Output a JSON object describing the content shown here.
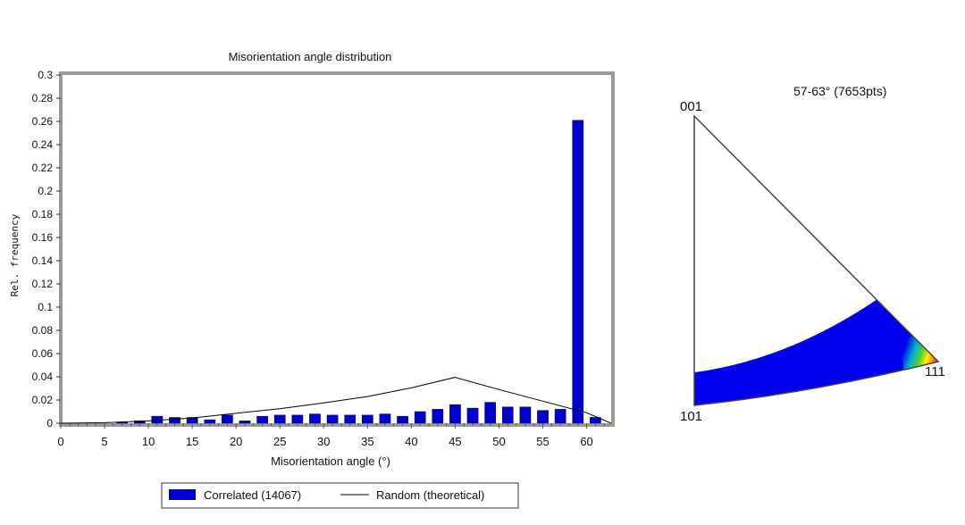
{
  "chart_data": [
    {
      "type": "bar",
      "title": "Misorientation angle distribution",
      "xlabel": "Misorientation angle (°)",
      "ylabel": "Rel. frequency",
      "xlim": [
        0,
        63
      ],
      "ylim": [
        0,
        0.3
      ],
      "x_ticks": [
        0,
        5,
        10,
        15,
        20,
        25,
        30,
        35,
        40,
        45,
        50,
        55,
        60
      ],
      "y_ticks": [
        "0",
        "0.02",
        "0.04",
        "0.06",
        "0.08",
        "0.1",
        "0.12",
        "0.14",
        "0.16",
        "0.18",
        "0.2",
        "0.22",
        "0.24",
        "0.26",
        "0.28",
        "0.3"
      ],
      "grid": false,
      "legend_position": "bottom-center",
      "bar_color": "#0000cc",
      "line_color": "#000000",
      "series": [
        {
          "name": "Correlated (14067)",
          "type": "bar",
          "x": [
            1,
            3,
            5,
            7,
            9,
            11,
            13,
            15,
            17,
            19,
            21,
            23,
            25,
            27,
            29,
            31,
            33,
            35,
            37,
            39,
            41,
            43,
            45,
            47,
            49,
            51,
            53,
            55,
            57,
            59,
            61
          ],
          "y": [
            0,
            0,
            0,
            0.001,
            0.002,
            0.006,
            0.005,
            0.005,
            0.003,
            0.007,
            0.002,
            0.006,
            0.007,
            0.007,
            0.008,
            0.007,
            0.007,
            0.007,
            0.008,
            0.006,
            0.01,
            0.012,
            0.016,
            0.013,
            0.018,
            0.014,
            0.014,
            0.011,
            0.012,
            0.261,
            0.005
          ]
        },
        {
          "name": "Random (theoretical)",
          "type": "line",
          "x": [
            0,
            5,
            10,
            15,
            20,
            25,
            30,
            35,
            40,
            45,
            50,
            55,
            60,
            62.8
          ],
          "y": [
            0,
            0.0005,
            0.002,
            0.0045,
            0.0085,
            0.0125,
            0.0175,
            0.023,
            0.0305,
            0.0395,
            0.029,
            0.019,
            0.009,
            0
          ]
        }
      ]
    },
    {
      "type": "diagram",
      "title": "57-63° (7653pts)",
      "corner_labels": [
        "001",
        "101",
        "111"
      ],
      "fill_colors": [
        "#0000ee",
        "#00b8c8",
        "#4fcf2a",
        "#ffee00",
        "#ff9900",
        "#ff2200"
      ]
    }
  ]
}
